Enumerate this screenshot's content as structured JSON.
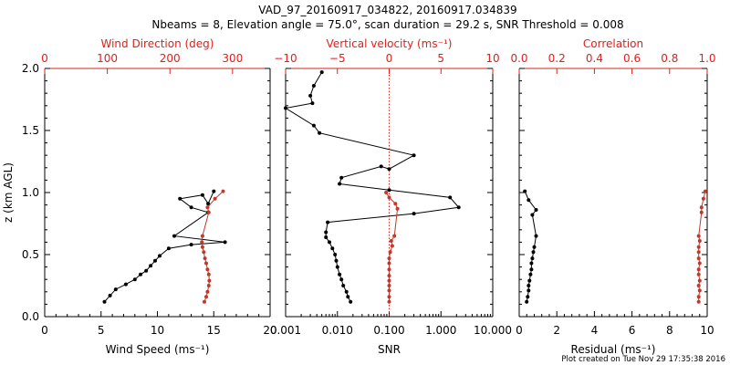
{
  "header": {
    "title": "VAD_97_20160917_034822, 20160917.034839",
    "subtitle": "Nbeams = 8, Elevation angle = 75.0°, scan duration = 29.2 s, SNR Threshold = 0.008"
  },
  "footer": {
    "created": "Plot created on Tue Nov 29 17:35:38 2016"
  },
  "colors": {
    "primary": "#000000",
    "secondary": "#c0392b",
    "top_axis": "#e0201b"
  },
  "chart_data": [
    {
      "id": "wind",
      "type": "line",
      "ylabel": "z (km AGL)",
      "ylim": [
        0,
        2
      ],
      "yticks": [
        "0.0",
        "0.5",
        "1.0",
        "1.5",
        "2.0"
      ],
      "bottom_axis": {
        "label": "Wind Speed (ms⁻¹)",
        "range": [
          0,
          20
        ],
        "ticks": [
          "0",
          "5",
          "10",
          "15",
          "20"
        ]
      },
      "top_axis": {
        "label": "Wind Direction (deg)",
        "range": [
          0,
          360
        ],
        "ticks": [
          "0",
          "100",
          "200",
          "300"
        ]
      },
      "series": [
        {
          "axis": "bottom",
          "color": "#000000",
          "x": [
            5.3,
            5.8,
            6.3,
            7.2,
            8.0,
            8.5,
            9.0,
            9.4,
            9.8,
            10.2,
            11.0,
            13.0,
            16.0,
            11.5,
            14.5,
            13.0,
            12.0,
            14.0,
            14.5,
            15.0
          ],
          "y": [
            0.12,
            0.17,
            0.22,
            0.26,
            0.3,
            0.34,
            0.37,
            0.41,
            0.45,
            0.49,
            0.55,
            0.58,
            0.6,
            0.65,
            0.84,
            0.88,
            0.95,
            0.98,
            0.91,
            1.01
          ]
        },
        {
          "axis": "top",
          "color": "#c0392b",
          "x": [
            255,
            258,
            260,
            262,
            263,
            262,
            260,
            258,
            256,
            254,
            252,
            251,
            252,
            262,
            260,
            272,
            285
          ],
          "y": [
            0.12,
            0.16,
            0.2,
            0.25,
            0.29,
            0.34,
            0.38,
            0.43,
            0.47,
            0.52,
            0.56,
            0.6,
            0.65,
            0.84,
            0.88,
            0.95,
            1.01
          ]
        }
      ]
    },
    {
      "id": "snr",
      "type": "line",
      "ylim": [
        0,
        2
      ],
      "bottom_axis": {
        "label": "SNR",
        "scale": "log",
        "range": [
          0.001,
          10
        ],
        "ticks": [
          "0.001",
          "0.010",
          "0.100",
          "1.000",
          "10.000"
        ]
      },
      "top_axis": {
        "label": "Vertical velocity (ms⁻¹)",
        "range": [
          -10,
          10
        ],
        "ticks": [
          "−10",
          "−5",
          "0",
          "5",
          "10"
        ],
        "zero_line": true
      },
      "series": [
        {
          "axis": "bottom",
          "color": "#000000",
          "x": [
            0.018,
            0.016,
            0.015,
            0.013,
            0.012,
            0.011,
            0.01,
            0.0095,
            0.009,
            0.008,
            0.007,
            0.006,
            0.006,
            0.0065,
            0.3,
            2.2,
            1.5,
            0.1,
            0.011,
            0.012,
            0.07,
            0.1,
            0.3,
            0.0045,
            0.0035,
            0.001,
            0.0033,
            0.003,
            0.0035,
            0.005
          ],
          "y": [
            0.12,
            0.16,
            0.2,
            0.25,
            0.3,
            0.34,
            0.4,
            0.45,
            0.5,
            0.55,
            0.6,
            0.64,
            0.68,
            0.76,
            0.83,
            0.88,
            0.96,
            1.02,
            1.07,
            1.12,
            1.21,
            1.19,
            1.3,
            1.48,
            1.54,
            1.68,
            1.72,
            1.78,
            1.86,
            1.97
          ]
        },
        {
          "axis": "top",
          "color": "#c0392b",
          "x": [
            0,
            0,
            0,
            0,
            0,
            0,
            0,
            0,
            0,
            0.1,
            0.3,
            0.2,
            0.5,
            0.8,
            0.6,
            0,
            -0.3
          ],
          "y": [
            0.12,
            0.16,
            0.21,
            0.25,
            0.29,
            0.33,
            0.38,
            0.43,
            0.47,
            0.52,
            0.57,
            0.61,
            0.65,
            0.87,
            0.91,
            0.96,
            1.0
          ]
        }
      ]
    },
    {
      "id": "corr",
      "type": "line",
      "ylim": [
        0,
        2
      ],
      "bottom_axis": {
        "label": "Residual (ms⁻¹)",
        "range": [
          0,
          10
        ],
        "ticks": [
          "0",
          "2",
          "4",
          "6",
          "8",
          "10"
        ]
      },
      "top_axis": {
        "label": "Correlation",
        "range": [
          0,
          1
        ],
        "ticks": [
          "0.0",
          "0.2",
          "0.4",
          "0.6",
          "0.8",
          "1.0"
        ]
      },
      "series": [
        {
          "axis": "bottom",
          "color": "#000000",
          "x": [
            0.4,
            0.45,
            0.5,
            0.5,
            0.55,
            0.6,
            0.65,
            0.65,
            0.7,
            0.75,
            0.8,
            0.9,
            0.7,
            0.9,
            0.5,
            0.3
          ],
          "y": [
            0.12,
            0.16,
            0.21,
            0.25,
            0.29,
            0.34,
            0.38,
            0.43,
            0.47,
            0.52,
            0.56,
            0.65,
            0.82,
            0.86,
            0.94,
            1.01
          ]
        },
        {
          "axis": "top",
          "color": "#c0392b",
          "x": [
            0.955,
            0.955,
            0.96,
            0.955,
            0.96,
            0.955,
            0.955,
            0.96,
            0.955,
            0.955,
            0.955,
            0.96,
            0.955,
            0.97,
            0.97,
            0.98,
            0.99
          ],
          "y": [
            0.12,
            0.16,
            0.21,
            0.25,
            0.29,
            0.34,
            0.38,
            0.43,
            0.47,
            0.52,
            0.56,
            0.61,
            0.65,
            0.84,
            0.88,
            0.95,
            1.01
          ]
        }
      ]
    }
  ]
}
